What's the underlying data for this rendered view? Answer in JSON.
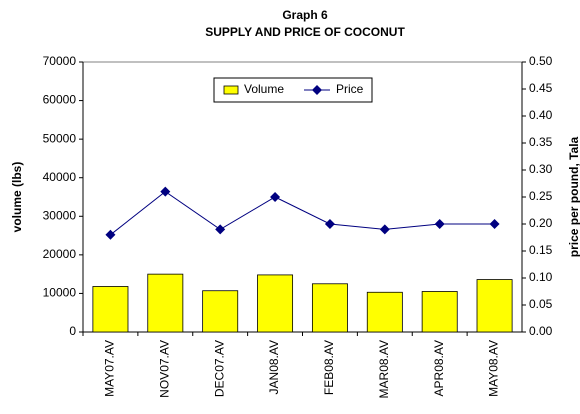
{
  "chart_data": {
    "type": "bar_line",
    "title": "Graph 6",
    "subtitle": "SUPPLY AND PRICE OF COCONUT",
    "y_label": "volume (lbs)",
    "y2_label": "price per pound, Tala",
    "categories": [
      "MAY07.AV",
      "NOV07.AV",
      "DEC07.AV",
      "JAN08.AV",
      "FEB08.AV",
      "MAR08.AV",
      "APR08.AV",
      "MAY08.AV"
    ],
    "series": [
      {
        "name": "Volume",
        "color": "#ffff00",
        "kind": "bar",
        "values": [
          11800,
          15000,
          10700,
          14800,
          12500,
          10300,
          10500,
          13600
        ]
      },
      {
        "name": "Price",
        "color": "#000080",
        "kind": "line",
        "axis": "y2",
        "values": [
          0.18,
          0.26,
          0.19,
          0.25,
          0.2,
          0.19,
          0.2,
          0.2
        ]
      }
    ],
    "ylim": [
      0,
      70000
    ],
    "yticks": [
      0,
      10000,
      20000,
      30000,
      40000,
      50000,
      60000,
      70000
    ],
    "y2lim": [
      0,
      0.5
    ],
    "y2ticks": [
      {
        "value": 0,
        "label": "0.00"
      },
      {
        "value": 0.05,
        "label": "0.05"
      },
      {
        "value": 0.1,
        "label": "0.10"
      },
      {
        "value": 0.15,
        "label": "0.15"
      },
      {
        "value": 0.2,
        "label": "0.20"
      },
      {
        "value": 0.25,
        "label": "0.25"
      },
      {
        "value": 0.3,
        "label": "0.30"
      },
      {
        "value": 0.35,
        "label": "0.35"
      },
      {
        "value": 0.4,
        "label": "0.40"
      },
      {
        "value": 0.45,
        "label": "0.45"
      },
      {
        "value": 0.5,
        "label": "0.50"
      }
    ],
    "legend": "top"
  }
}
